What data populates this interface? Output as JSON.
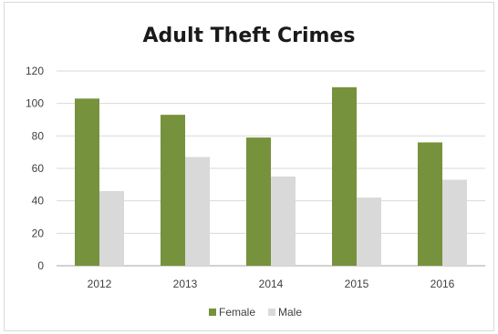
{
  "chart_data": {
    "type": "bar",
    "title": "Adult Theft Crimes",
    "categories": [
      "2012",
      "2013",
      "2014",
      "2015",
      "2016"
    ],
    "series": [
      {
        "name": "Female",
        "values": [
          103,
          93,
          79,
          110,
          76
        ],
        "color": "#76923c"
      },
      {
        "name": "Male",
        "values": [
          46,
          67,
          55,
          42,
          53
        ],
        "color": "#d9d9d9"
      }
    ],
    "xlabel": "",
    "ylabel": "",
    "ylim": [
      0,
      120
    ],
    "yticks": [
      "0",
      "20",
      "40",
      "60",
      "80",
      "100",
      "120"
    ],
    "grid": true,
    "legend_position": "bottom"
  }
}
